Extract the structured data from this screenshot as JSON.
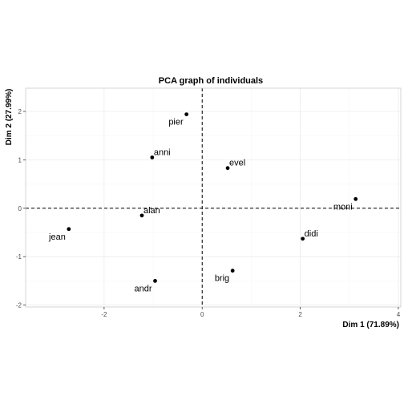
{
  "chart_data": {
    "type": "scatter",
    "title": "PCA graph of individuals",
    "xlabel": "Dim 1 (71.89%)",
    "ylabel": "Dim 2 (27.99%)",
    "xlim": [
      -3.6,
      4.05
    ],
    "ylim": [
      -2.04,
      2.48
    ],
    "xticks": [
      -2,
      0,
      2,
      4
    ],
    "yticks": [
      -2,
      -1,
      0,
      1,
      2
    ],
    "xtick_labels": [
      "-2",
      "0",
      "2",
      "4"
    ],
    "ytick_labels": [
      "-2",
      "-1",
      "0",
      "1",
      "2"
    ],
    "grid": true,
    "reference_lines": {
      "x": 0,
      "y": 0,
      "style": "dashed"
    },
    "point_color": "#000000",
    "points": [
      {
        "label": "pier",
        "x": -0.32,
        "y": 1.94,
        "label_pos": "below-left"
      },
      {
        "label": "anni",
        "x": -1.02,
        "y": 1.05,
        "label_pos": "above-right"
      },
      {
        "label": "evel",
        "x": 0.52,
        "y": 0.83,
        "label_pos": "above-right"
      },
      {
        "label": "moni",
        "x": 3.13,
        "y": 0.19,
        "label_pos": "below-left"
      },
      {
        "label": "alan",
        "x": -1.23,
        "y": -0.15,
        "label_pos": "above-right"
      },
      {
        "label": "jean",
        "x": -2.72,
        "y": -0.43,
        "label_pos": "below-left"
      },
      {
        "label": "didi",
        "x": 2.05,
        "y": -0.63,
        "label_pos": "above-right"
      },
      {
        "label": "brig",
        "x": 0.62,
        "y": -1.29,
        "label_pos": "below-left"
      },
      {
        "label": "andr",
        "x": -0.96,
        "y": -1.5,
        "label_pos": "below-left"
      }
    ]
  }
}
